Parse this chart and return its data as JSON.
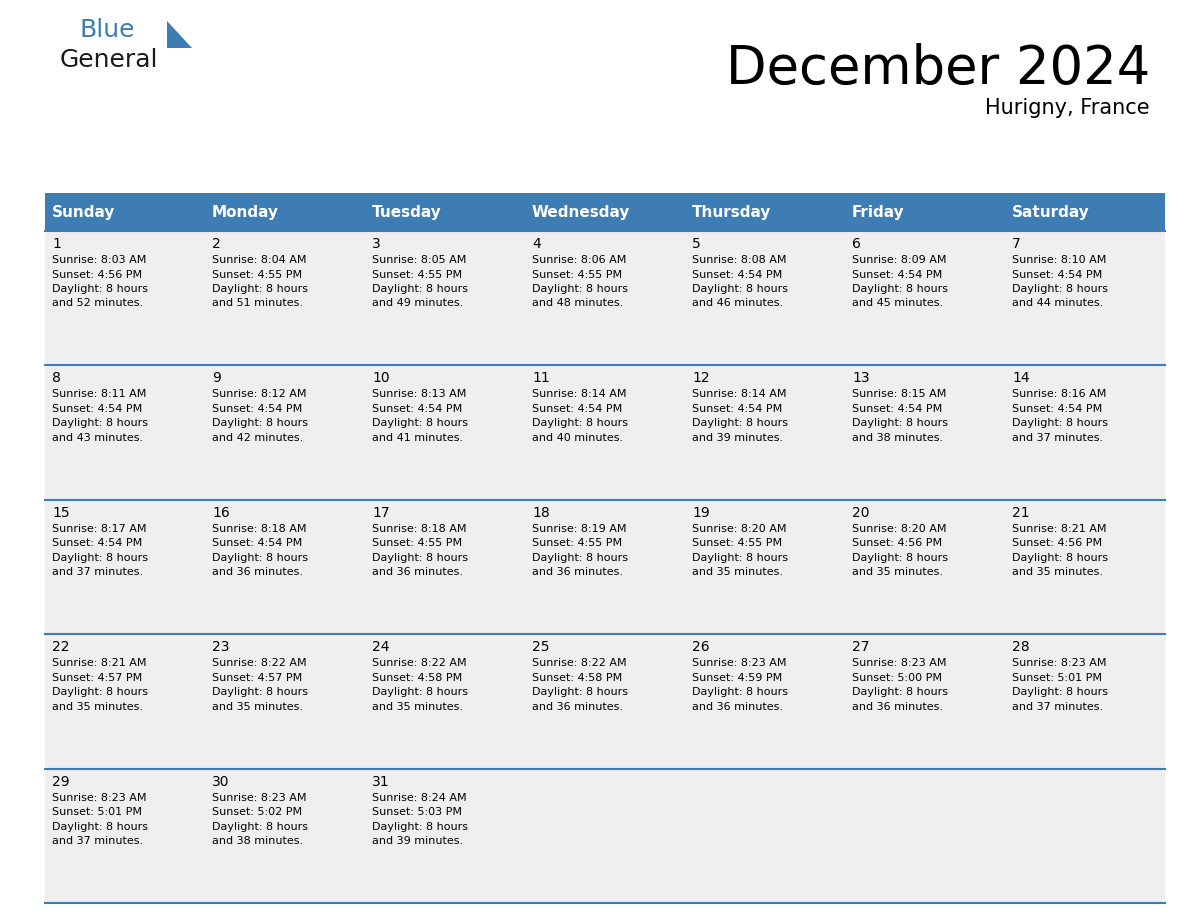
{
  "title": "December 2024",
  "subtitle": "Hurigny, France",
  "header_color": "#3d7db3",
  "header_text_color": "#ffffff",
  "days_of_week": [
    "Sunday",
    "Monday",
    "Tuesday",
    "Wednesday",
    "Thursday",
    "Friday",
    "Saturday"
  ],
  "weeks": [
    [
      {
        "day": 1,
        "sunrise": "8:03 AM",
        "sunset": "4:56 PM",
        "daylight": "8 hours and 52 minutes"
      },
      {
        "day": 2,
        "sunrise": "8:04 AM",
        "sunset": "4:55 PM",
        "daylight": "8 hours and 51 minutes"
      },
      {
        "day": 3,
        "sunrise": "8:05 AM",
        "sunset": "4:55 PM",
        "daylight": "8 hours and 49 minutes"
      },
      {
        "day": 4,
        "sunrise": "8:06 AM",
        "sunset": "4:55 PM",
        "daylight": "8 hours and 48 minutes"
      },
      {
        "day": 5,
        "sunrise": "8:08 AM",
        "sunset": "4:54 PM",
        "daylight": "8 hours and 46 minutes"
      },
      {
        "day": 6,
        "sunrise": "8:09 AM",
        "sunset": "4:54 PM",
        "daylight": "8 hours and 45 minutes"
      },
      {
        "day": 7,
        "sunrise": "8:10 AM",
        "sunset": "4:54 PM",
        "daylight": "8 hours and 44 minutes"
      }
    ],
    [
      {
        "day": 8,
        "sunrise": "8:11 AM",
        "sunset": "4:54 PM",
        "daylight": "8 hours and 43 minutes"
      },
      {
        "day": 9,
        "sunrise": "8:12 AM",
        "sunset": "4:54 PM",
        "daylight": "8 hours and 42 minutes"
      },
      {
        "day": 10,
        "sunrise": "8:13 AM",
        "sunset": "4:54 PM",
        "daylight": "8 hours and 41 minutes"
      },
      {
        "day": 11,
        "sunrise": "8:14 AM",
        "sunset": "4:54 PM",
        "daylight": "8 hours and 40 minutes"
      },
      {
        "day": 12,
        "sunrise": "8:14 AM",
        "sunset": "4:54 PM",
        "daylight": "8 hours and 39 minutes"
      },
      {
        "day": 13,
        "sunrise": "8:15 AM",
        "sunset": "4:54 PM",
        "daylight": "8 hours and 38 minutes"
      },
      {
        "day": 14,
        "sunrise": "8:16 AM",
        "sunset": "4:54 PM",
        "daylight": "8 hours and 37 minutes"
      }
    ],
    [
      {
        "day": 15,
        "sunrise": "8:17 AM",
        "sunset": "4:54 PM",
        "daylight": "8 hours and 37 minutes"
      },
      {
        "day": 16,
        "sunrise": "8:18 AM",
        "sunset": "4:54 PM",
        "daylight": "8 hours and 36 minutes"
      },
      {
        "day": 17,
        "sunrise": "8:18 AM",
        "sunset": "4:55 PM",
        "daylight": "8 hours and 36 minutes"
      },
      {
        "day": 18,
        "sunrise": "8:19 AM",
        "sunset": "4:55 PM",
        "daylight": "8 hours and 36 minutes"
      },
      {
        "day": 19,
        "sunrise": "8:20 AM",
        "sunset": "4:55 PM",
        "daylight": "8 hours and 35 minutes"
      },
      {
        "day": 20,
        "sunrise": "8:20 AM",
        "sunset": "4:56 PM",
        "daylight": "8 hours and 35 minutes"
      },
      {
        "day": 21,
        "sunrise": "8:21 AM",
        "sunset": "4:56 PM",
        "daylight": "8 hours and 35 minutes"
      }
    ],
    [
      {
        "day": 22,
        "sunrise": "8:21 AM",
        "sunset": "4:57 PM",
        "daylight": "8 hours and 35 minutes"
      },
      {
        "day": 23,
        "sunrise": "8:22 AM",
        "sunset": "4:57 PM",
        "daylight": "8 hours and 35 minutes"
      },
      {
        "day": 24,
        "sunrise": "8:22 AM",
        "sunset": "4:58 PM",
        "daylight": "8 hours and 35 minutes"
      },
      {
        "day": 25,
        "sunrise": "8:22 AM",
        "sunset": "4:58 PM",
        "daylight": "8 hours and 36 minutes"
      },
      {
        "day": 26,
        "sunrise": "8:23 AM",
        "sunset": "4:59 PM",
        "daylight": "8 hours and 36 minutes"
      },
      {
        "day": 27,
        "sunrise": "8:23 AM",
        "sunset": "5:00 PM",
        "daylight": "8 hours and 36 minutes"
      },
      {
        "day": 28,
        "sunrise": "8:23 AM",
        "sunset": "5:01 PM",
        "daylight": "8 hours and 37 minutes"
      }
    ],
    [
      {
        "day": 29,
        "sunrise": "8:23 AM",
        "sunset": "5:01 PM",
        "daylight": "8 hours and 37 minutes"
      },
      {
        "day": 30,
        "sunrise": "8:23 AM",
        "sunset": "5:02 PM",
        "daylight": "8 hours and 38 minutes"
      },
      {
        "day": 31,
        "sunrise": "8:24 AM",
        "sunset": "5:03 PM",
        "daylight": "8 hours and 39 minutes"
      },
      null,
      null,
      null,
      null
    ]
  ],
  "bg_color": "#ffffff",
  "cell_bg_color": "#efefef",
  "grid_line_color": "#3d7db3",
  "text_color": "#000000",
  "day_number_fontsize": 10,
  "cell_text_fontsize": 8,
  "header_fontsize": 11,
  "title_fontsize": 38,
  "subtitle_fontsize": 15
}
